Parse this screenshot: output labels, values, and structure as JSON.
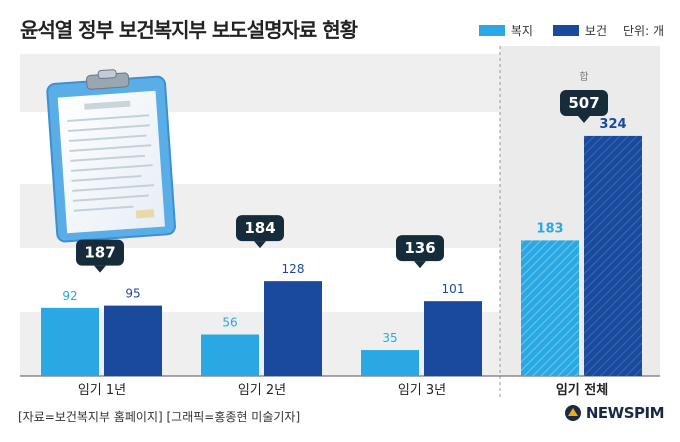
{
  "title": "윤석열 정부 보건복지부 보도설명자료 현황",
  "legend": {
    "welfare": "복지",
    "health": "보건",
    "unit": "단위: 개"
  },
  "colors": {
    "welfare": "#2aa8e3",
    "health": "#1a4a9c",
    "callout": "#172c3a",
    "total_band": "#ebebeb",
    "grid_band": "#efefef"
  },
  "footer": {
    "source": "[자료=보건복지부 홈페이지] [그래픽=홍종현 미술기자]",
    "brand": "NEWSPIM"
  },
  "chart_data": {
    "type": "bar",
    "title": "윤석열 정부 보건복지부 보도설명자료 현황",
    "unit": "단위: 개",
    "categories": [
      "임기 1년",
      "임기 2년",
      "임기 3년",
      "임기 전체"
    ],
    "series": [
      {
        "name": "복지",
        "values": [
          92,
          56,
          35,
          183
        ]
      },
      {
        "name": "보건",
        "values": [
          95,
          128,
          101,
          324
        ]
      }
    ],
    "totals": [
      187,
      184,
      136,
      507
    ],
    "total_label": "합",
    "grid": "banded",
    "legend_position": "top-right"
  }
}
